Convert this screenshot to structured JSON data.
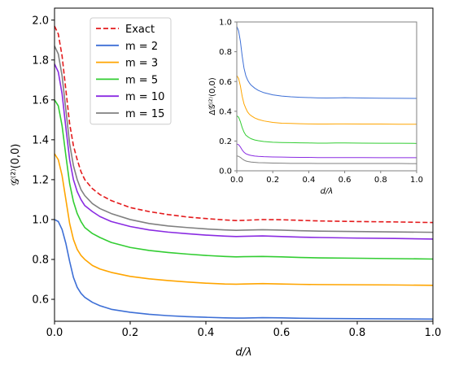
{
  "chart_data": [
    {
      "type": "line",
      "xlabel": "d/λ",
      "ylabel": "𝒢⁽²⁾(0,0)",
      "xlim": [
        0,
        1.0
      ],
      "ylim": [
        0.49,
        2.06
      ],
      "xticks": [
        "0.0",
        "0.2",
        "0.4",
        "0.6",
        "0.8",
        "1.0"
      ],
      "yticks": [
        "0.6",
        "0.8",
        "1.0",
        "1.2",
        "1.4",
        "1.6",
        "1.8",
        "2.0"
      ],
      "grid": false,
      "legend_position": "top-left",
      "legend": [
        "Exact",
        "m = 2",
        "m = 3",
        "m = 5",
        "m = 10",
        "m = 15"
      ],
      "x": [
        0,
        0.01,
        0.02,
        0.03,
        0.04,
        0.05,
        0.06,
        0.07,
        0.08,
        0.1,
        0.12,
        0.15,
        0.2,
        0.25,
        0.3,
        0.35,
        0.4,
        0.45,
        0.48,
        0.5,
        0.55,
        0.6,
        0.65,
        0.7,
        0.8,
        0.9,
        1.0
      ],
      "series": [
        {
          "name": "Exact",
          "color": "#e41a1c",
          "dash": true,
          "values": [
            1.97,
            1.93,
            1.82,
            1.65,
            1.48,
            1.37,
            1.3,
            1.24,
            1.2,
            1.155,
            1.125,
            1.095,
            1.06,
            1.04,
            1.025,
            1.013,
            1.005,
            0.998,
            0.995,
            0.996,
            1.0,
            0.999,
            0.996,
            0.993,
            0.99,
            0.988,
            0.985
          ]
        },
        {
          "name": "m = 2",
          "color": "#3d6fd6",
          "dash": false,
          "values": [
            1.0,
            0.99,
            0.95,
            0.88,
            0.79,
            0.71,
            0.66,
            0.63,
            0.61,
            0.585,
            0.568,
            0.55,
            0.535,
            0.525,
            0.518,
            0.513,
            0.51,
            0.507,
            0.506,
            0.506,
            0.508,
            0.507,
            0.505,
            0.504,
            0.503,
            0.502,
            0.501
          ]
        },
        {
          "name": "m = 3",
          "color": "#ffa500",
          "dash": false,
          "values": [
            1.33,
            1.3,
            1.22,
            1.1,
            0.98,
            0.9,
            0.85,
            0.82,
            0.8,
            0.77,
            0.752,
            0.735,
            0.715,
            0.703,
            0.694,
            0.687,
            0.681,
            0.677,
            0.676,
            0.677,
            0.679,
            0.677,
            0.675,
            0.674,
            0.673,
            0.672,
            0.67
          ]
        },
        {
          "name": "m = 5",
          "color": "#32cd32",
          "dash": false,
          "values": [
            1.6,
            1.57,
            1.47,
            1.32,
            1.18,
            1.09,
            1.03,
            0.99,
            0.96,
            0.93,
            0.91,
            0.885,
            0.86,
            0.845,
            0.835,
            0.827,
            0.82,
            0.815,
            0.813,
            0.814,
            0.815,
            0.813,
            0.81,
            0.808,
            0.806,
            0.804,
            0.802
          ]
        },
        {
          "name": "m = 10",
          "color": "#8a2be2",
          "dash": false,
          "values": [
            1.78,
            1.74,
            1.63,
            1.46,
            1.3,
            1.2,
            1.14,
            1.1,
            1.07,
            1.04,
            1.015,
            0.99,
            0.965,
            0.948,
            0.937,
            0.929,
            0.922,
            0.917,
            0.915,
            0.916,
            0.918,
            0.915,
            0.912,
            0.91,
            0.907,
            0.905,
            0.902
          ]
        },
        {
          "name": "m = 15",
          "color": "#808080",
          "dash": false,
          "values": [
            1.87,
            1.83,
            1.72,
            1.55,
            1.38,
            1.27,
            1.2,
            1.15,
            1.12,
            1.08,
            1.055,
            1.03,
            1.0,
            0.98,
            0.968,
            0.96,
            0.953,
            0.948,
            0.946,
            0.947,
            0.949,
            0.947,
            0.944,
            0.942,
            0.94,
            0.938,
            0.936
          ]
        }
      ]
    },
    {
      "type": "line",
      "xlabel": "d/λ",
      "ylabel": "Δ𝒢⁽²⁾(0,0)",
      "xlim": [
        0,
        1.0
      ],
      "ylim": [
        0,
        1.0
      ],
      "xticks": [
        "0.0",
        "0.2",
        "0.4",
        "0.6",
        "0.8",
        "1.0"
      ],
      "yticks": [
        "0.0",
        "0.2",
        "0.4",
        "0.6",
        "0.8",
        "1.0"
      ],
      "grid": false,
      "x": [
        0,
        0.01,
        0.02,
        0.03,
        0.04,
        0.05,
        0.06,
        0.07,
        0.08,
        0.1,
        0.12,
        0.15,
        0.2,
        0.25,
        0.3,
        0.35,
        0.4,
        0.45,
        0.5,
        0.55,
        0.6,
        0.7,
        0.8,
        0.9,
        1.0
      ],
      "series": [
        {
          "color": "#3d6fd6",
          "values": [
            0.97,
            0.94,
            0.87,
            0.77,
            0.69,
            0.64,
            0.61,
            0.59,
            0.575,
            0.555,
            0.54,
            0.525,
            0.51,
            0.502,
            0.497,
            0.494,
            0.492,
            0.49,
            0.489,
            0.49,
            0.491,
            0.489,
            0.488,
            0.487,
            0.486
          ]
        },
        {
          "color": "#ffa500",
          "values": [
            0.64,
            0.62,
            0.57,
            0.5,
            0.45,
            0.42,
            0.395,
            0.38,
            0.37,
            0.355,
            0.345,
            0.335,
            0.325,
            0.32,
            0.318,
            0.316,
            0.315,
            0.314,
            0.314,
            0.315,
            0.315,
            0.314,
            0.314,
            0.313,
            0.313
          ]
        },
        {
          "color": "#32cd32",
          "values": [
            0.37,
            0.36,
            0.33,
            0.29,
            0.26,
            0.24,
            0.23,
            0.222,
            0.215,
            0.207,
            0.202,
            0.197,
            0.192,
            0.19,
            0.189,
            0.188,
            0.187,
            0.186,
            0.186,
            0.187,
            0.187,
            0.186,
            0.185,
            0.185,
            0.184
          ]
        },
        {
          "color": "#8a2be2",
          "values": [
            0.18,
            0.175,
            0.16,
            0.14,
            0.125,
            0.115,
            0.11,
            0.106,
            0.103,
            0.099,
            0.097,
            0.095,
            0.093,
            0.092,
            0.091,
            0.09,
            0.09,
            0.089,
            0.089,
            0.089,
            0.089,
            0.089,
            0.088,
            0.088,
            0.088
          ]
        },
        {
          "color": "#808080",
          "values": [
            0.1,
            0.097,
            0.09,
            0.08,
            0.072,
            0.066,
            0.063,
            0.061,
            0.059,
            0.057,
            0.055,
            0.054,
            0.052,
            0.051,
            0.05,
            0.05,
            0.05,
            0.049,
            0.049,
            0.049,
            0.049,
            0.049,
            0.049,
            0.049,
            0.048
          ]
        }
      ]
    }
  ]
}
